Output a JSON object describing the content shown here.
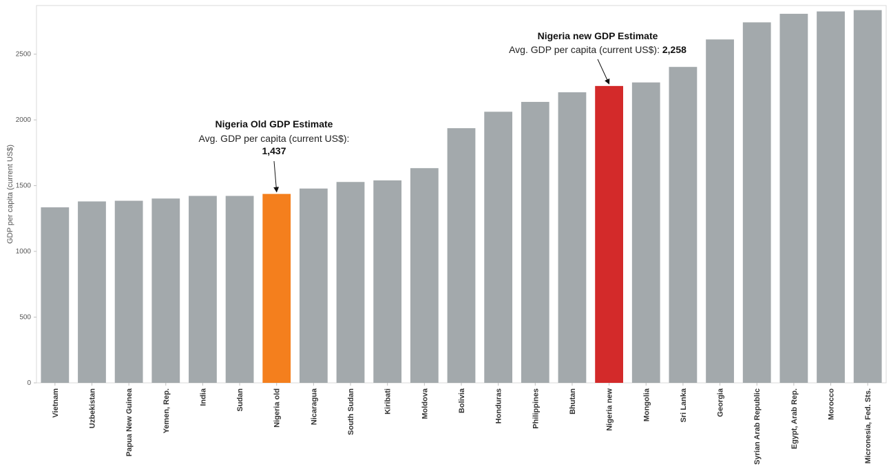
{
  "chart_data": {
    "type": "bar",
    "title": "",
    "xlabel": "",
    "ylabel": "GDP per capita (current US$)",
    "ylim": [
      0,
      2870
    ],
    "yticks": [
      0,
      500,
      1000,
      1500,
      2000,
      2500
    ],
    "grid": false,
    "categories": [
      "Vietnam",
      "Uzbekistan",
      "Papua New Guinea",
      "Yemen, Rep.",
      "India",
      "Sudan",
      "Nigeria old",
      "Nicaragua",
      "South Sudan",
      "Kiribati",
      "Moldova",
      "Bolivia",
      "Honduras",
      "Philippines",
      "Bhutan",
      "Nigeria new",
      "Mongolia",
      "Sri Lanka",
      "Georgia",
      "Syrian Arab Republic",
      "Egypt, Arab Rep.",
      "Morocco",
      "Micronesia, Fed. Sts."
    ],
    "values": [
      1335,
      1380,
      1385,
      1402,
      1422,
      1422,
      1437,
      1478,
      1528,
      1540,
      1633,
      1937,
      2062,
      2137,
      2210,
      2258,
      2285,
      2403,
      2612,
      2742,
      2807,
      2825,
      2835
    ],
    "colors": {
      "default": "#a3a9ac",
      "Nigeria old": "#f47f1d",
      "Nigeria new": "#d32a2a"
    },
    "annotations": [
      {
        "target": "Nigeria old",
        "title": "Nigeria Old GDP Estimate",
        "line": "Avg. GDP per capita (current US$):",
        "value": "1,437"
      },
      {
        "target": "Nigeria new",
        "title": "Nigeria new GDP Estimate",
        "line": "Avg. GDP per capita (current US$):",
        "value": "2,258"
      }
    ]
  }
}
